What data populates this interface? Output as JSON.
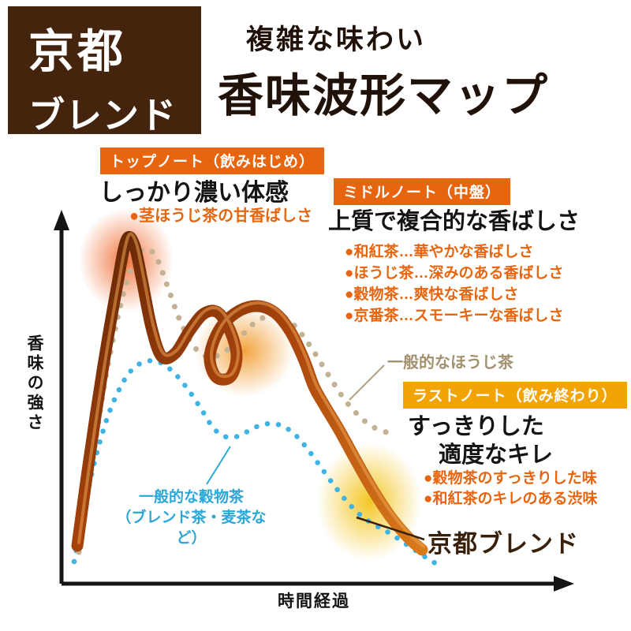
{
  "header": {
    "brand_line1": "京都",
    "brand_line2": "ブレンド",
    "brand_bg": "#45240e",
    "subtitle": "複雑な味わい",
    "title": "香味波形マップ"
  },
  "axes": {
    "y_label": "香味の強さ",
    "x_label": "時間経過"
  },
  "notes": {
    "top": {
      "badge": "トップノート（飲みはじめ）",
      "badge_bg": "#e8650f",
      "heading": "しっかり濃い体感",
      "bullets": [
        "●茎ほうじ茶の甘香ばしさ"
      ]
    },
    "middle": {
      "badge": "ミドルノート（中盤）",
      "badge_bg": "#e8650f",
      "heading": "上質で複合的な香ばしさ",
      "bullets": [
        "●和紅茶…華やかな香ばしさ",
        "●ほうじ茶…深みのある香ばしさ",
        "●穀物茶…爽快な香ばしさ",
        "●京番茶…スモーキーな香ばしさ"
      ]
    },
    "last": {
      "badge": "ラストノート（飲み終わり）",
      "badge_bg": "#f2a405",
      "heading_line1": "すっきりした",
      "heading_line2": "適度なキレ",
      "bullets": [
        "●穀物茶のすっきりした味",
        "●和紅茶のキレのある渋味"
      ]
    }
  },
  "series_labels": {
    "hojicha": "一般的なほうじ茶",
    "grain_line1": "一般的な穀物茶",
    "grain_line2": "（ブレンド茶・麦茶など）",
    "kyoto": "京都ブレンド"
  },
  "chart_data": {
    "type": "line",
    "title": "香味波形マップ",
    "xlabel": "時間経過",
    "ylabel": "香味の強さ",
    "axes_note": "Both axes are qualitative (no numeric ticks); points below are figure pixel coordinates in an 800x800 canvas, y inverted (smaller = stronger flavor).",
    "grid": false,
    "legend_position": "inline-annotations",
    "series": [
      {
        "name": "京都ブレンド",
        "style": "ribbon",
        "color_start": "#5f2506",
        "color_mid": "#a8430c",
        "color_end": "#d97a1a",
        "points": [
          [
            98,
            692
          ],
          [
            112,
            590
          ],
          [
            130,
            470
          ],
          [
            148,
            365
          ],
          [
            160,
            305
          ],
          [
            170,
            310
          ],
          [
            180,
            355
          ],
          [
            192,
            415
          ],
          [
            205,
            452
          ],
          [
            222,
            448
          ],
          [
            240,
            420
          ],
          [
            258,
            398
          ],
          [
            276,
            396
          ],
          [
            292,
            420
          ],
          [
            300,
            452
          ],
          [
            292,
            478
          ],
          [
            274,
            478
          ],
          [
            266,
            452
          ],
          [
            278,
            418
          ],
          [
            300,
            396
          ],
          [
            325,
            388
          ],
          [
            348,
            396
          ],
          [
            368,
            420
          ],
          [
            385,
            455
          ],
          [
            398,
            490
          ],
          [
            412,
            515
          ],
          [
            430,
            545
          ],
          [
            452,
            585
          ],
          [
            472,
            620
          ],
          [
            495,
            655
          ],
          [
            518,
            682
          ],
          [
            535,
            697
          ]
        ]
      },
      {
        "name": "一般的なほうじ茶",
        "style": "dotted",
        "color": "#c2b293",
        "points": [
          [
            100,
            700
          ],
          [
            115,
            600
          ],
          [
            132,
            490
          ],
          [
            152,
            390
          ],
          [
            170,
            330
          ],
          [
            185,
            316
          ],
          [
            198,
            326
          ],
          [
            212,
            362
          ],
          [
            228,
            406
          ],
          [
            245,
            438
          ],
          [
            262,
            452
          ],
          [
            282,
            448
          ],
          [
            302,
            430
          ],
          [
            322,
            410
          ],
          [
            342,
            400
          ],
          [
            360,
            402
          ],
          [
            378,
            418
          ],
          [
            398,
            446
          ],
          [
            418,
            478
          ],
          [
            438,
            508
          ],
          [
            458,
            530
          ],
          [
            476,
            543
          ],
          [
            490,
            548
          ]
        ]
      },
      {
        "name": "一般的な穀物茶（ブレンド茶・麦茶など）",
        "style": "dotted",
        "color": "#3fb4e4",
        "points": [
          [
            94,
            712
          ],
          [
            106,
            650
          ],
          [
            120,
            585
          ],
          [
            136,
            530
          ],
          [
            152,
            492
          ],
          [
            168,
            468
          ],
          [
            186,
            458
          ],
          [
            204,
            460
          ],
          [
            222,
            474
          ],
          [
            240,
            496
          ],
          [
            256,
            520
          ],
          [
            270,
            542
          ],
          [
            284,
            553
          ],
          [
            298,
            554
          ],
          [
            312,
            548
          ],
          [
            328,
            540
          ],
          [
            344,
            537
          ],
          [
            360,
            541
          ],
          [
            376,
            553
          ],
          [
            392,
            572
          ],
          [
            408,
            594
          ],
          [
            424,
            616
          ],
          [
            440,
            636
          ],
          [
            458,
            654
          ],
          [
            476,
            666
          ],
          [
            494,
            676
          ],
          [
            512,
            688
          ],
          [
            530,
            700
          ],
          [
            548,
            712
          ],
          [
            562,
            718
          ]
        ]
      }
    ],
    "glows": [
      {
        "cx": 160,
        "cy": 330,
        "rx": 60,
        "ry": 66,
        "color": "#ef5f1f",
        "meaning": "top-note peak"
      },
      {
        "cx": 310,
        "cy": 445,
        "rx": 63,
        "ry": 58,
        "color": "#f19420",
        "meaning": "middle-note peak"
      },
      {
        "cx": 468,
        "cy": 636,
        "rx": 66,
        "ry": 75,
        "color": "#f2bd00",
        "meaning": "last-note finish"
      }
    ]
  }
}
